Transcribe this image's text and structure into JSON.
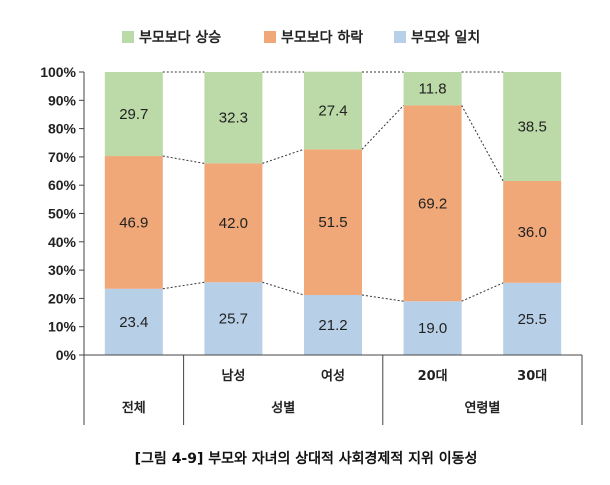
{
  "chart_data": {
    "type": "bar",
    "stacked": true,
    "normalized": true,
    "categories": [
      "전체",
      "남성",
      "여성",
      "20대",
      "30대"
    ],
    "sub_labels": [
      "",
      "남성",
      "여성",
      "20대",
      "30대"
    ],
    "groups": [
      {
        "label": "전체",
        "members": [
          0
        ]
      },
      {
        "label": "성별",
        "members": [
          1,
          2
        ]
      },
      {
        "label": "연령별",
        "members": [
          3,
          4
        ]
      }
    ],
    "series": [
      {
        "name": "부모와 일치",
        "color": "#b7d0e8",
        "values": [
          23.4,
          25.7,
          21.2,
          19.0,
          25.5
        ]
      },
      {
        "name": "부모보다 하락",
        "color": "#f0a878",
        "values": [
          46.9,
          42.0,
          51.5,
          69.2,
          36.0
        ]
      },
      {
        "name": "부모보다 상승",
        "color": "#bcd9a8",
        "values": [
          29.7,
          32.3,
          27.4,
          11.8,
          38.5
        ]
      }
    ],
    "value_labels": [
      [
        "23.4",
        "25.7",
        "21.2",
        "19.0",
        "25.5"
      ],
      [
        "46.9",
        "42.0",
        "51.5",
        "69.2",
        "36.0"
      ],
      [
        "29.7",
        "32.3",
        "27.4",
        "11.8",
        "38.5"
      ]
    ],
    "legend_order": [
      "부모보다 상승",
      "부모보다 하락",
      "부모와 일치"
    ],
    "legend_position": "top",
    "y_ticks": [
      "0%",
      "10%",
      "20%",
      "30%",
      "40%",
      "50%",
      "60%",
      "70%",
      "80%",
      "90%",
      "100%"
    ],
    "ylim": [
      0,
      100
    ],
    "series_lines": true,
    "grid": false
  },
  "caption": "[그림 4-9] 부모와 자녀의 상대적 사회경제적 지위 이동성"
}
